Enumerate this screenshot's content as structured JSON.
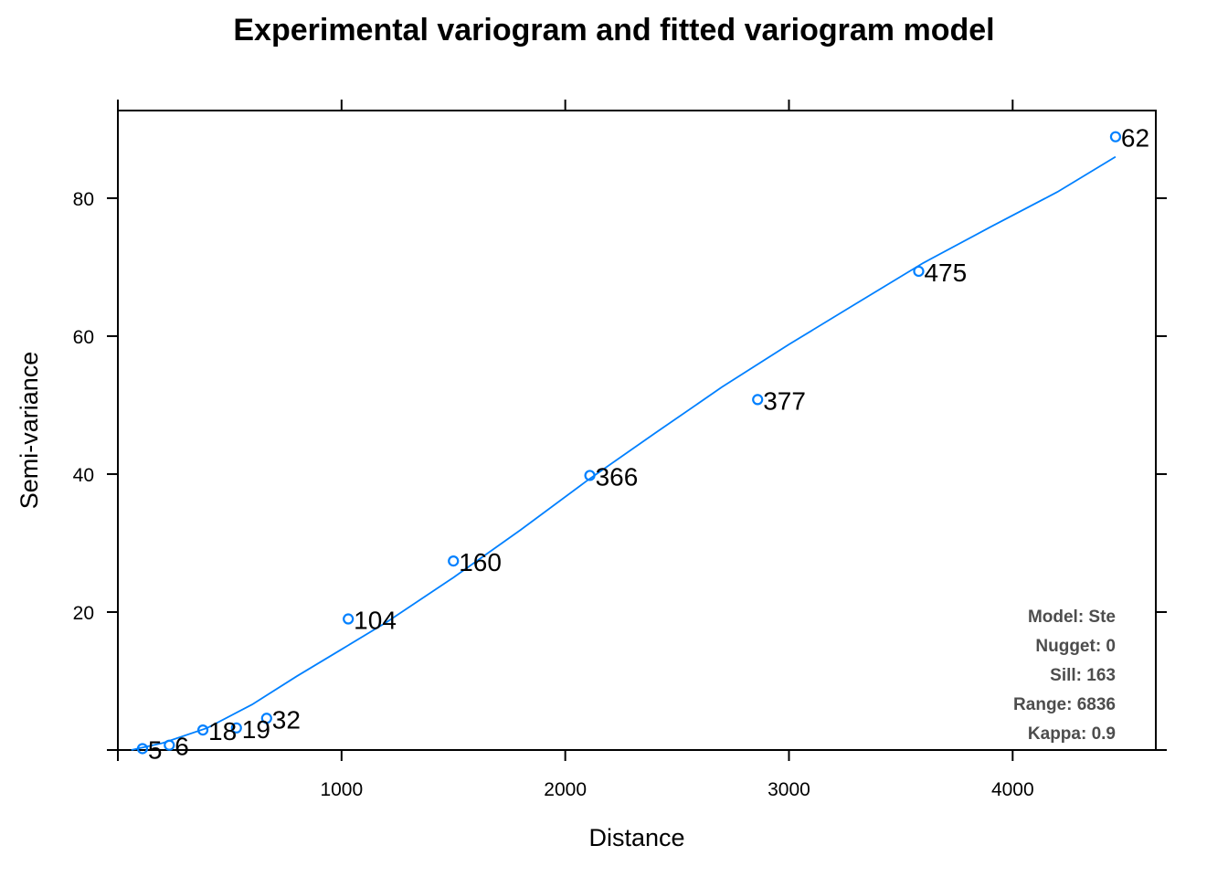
{
  "chart_data": {
    "type": "scatter",
    "title": "Experimental variogram and fitted variogram model",
    "xlabel": "Distance",
    "ylabel": "Semi-variance",
    "xlim": [
      0,
      4640
    ],
    "ylim": [
      0,
      92.7
    ],
    "x_ticks": [
      1000,
      2000,
      3000,
      4000
    ],
    "y_ticks": [
      20,
      40,
      60,
      80
    ],
    "grid": false,
    "experimental": [
      {
        "x": 110,
        "y": 0.2,
        "np": "5"
      },
      {
        "x": 230,
        "y": 0.7,
        "np": "6"
      },
      {
        "x": 380,
        "y": 2.9,
        "np": "18"
      },
      {
        "x": 530,
        "y": 3.2,
        "np": "19"
      },
      {
        "x": 665,
        "y": 4.6,
        "np": "32"
      },
      {
        "x": 1030,
        "y": 19.0,
        "np": "104"
      },
      {
        "x": 1500,
        "y": 27.4,
        "np": "160"
      },
      {
        "x": 2110,
        "y": 39.8,
        "np": "366"
      },
      {
        "x": 2860,
        "y": 50.8,
        "np": "377"
      },
      {
        "x": 3580,
        "y": 69.4,
        "np": "475"
      },
      {
        "x": 4460,
        "y": 88.9,
        "np": "62"
      }
    ],
    "fitted_model": {
      "x": [
        60,
        200,
        400,
        600,
        800,
        1000,
        1200,
        1500,
        1800,
        2100,
        2400,
        2700,
        3000,
        3300,
        3600,
        3900,
        4200,
        4460
      ],
      "y": [
        0.0,
        1.0,
        3.2,
        6.6,
        10.7,
        14.6,
        18.5,
        25.0,
        31.9,
        39.1,
        45.9,
        52.6,
        58.8,
        64.7,
        70.6,
        75.8,
        80.9,
        86.0
      ]
    },
    "info": {
      "model": "Model: Ste",
      "nugget": "Nugget: 0",
      "sill": "Sill: 163",
      "range": "Range: 6836",
      "kappa": "Kappa: 0.9"
    },
    "colors": {
      "points": "#0080ff",
      "line": "#0080ff",
      "info_text": "#4d4d4d"
    }
  }
}
